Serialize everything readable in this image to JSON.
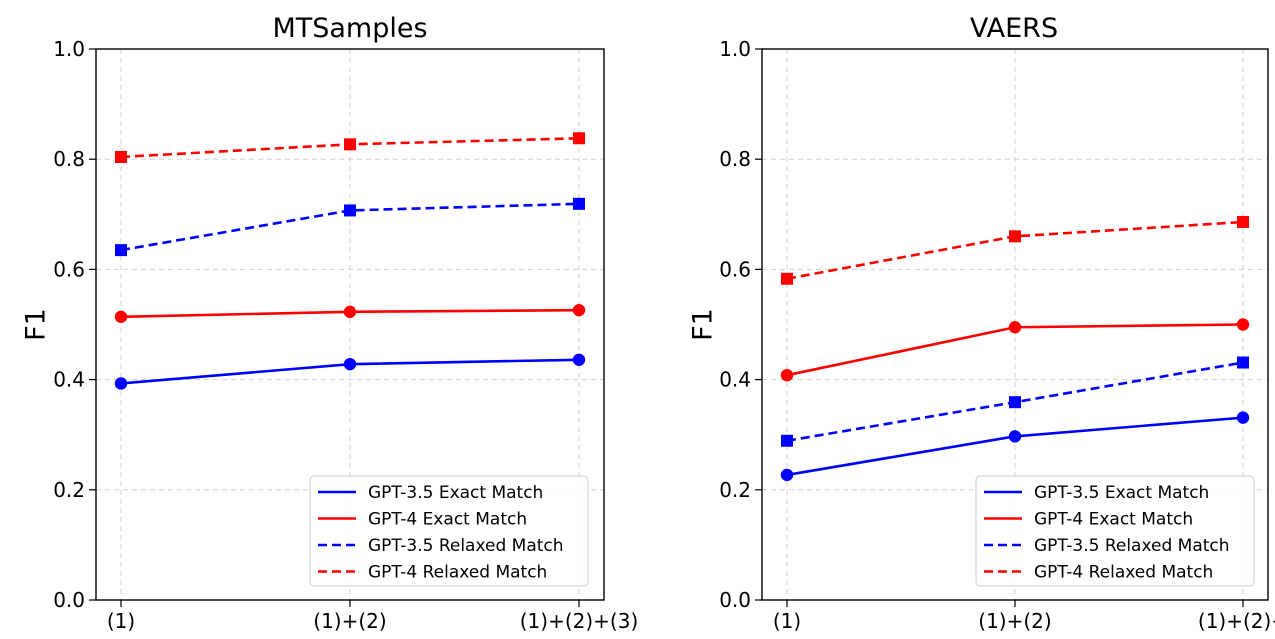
{
  "chart_data": [
    {
      "type": "line",
      "title": "MTSamples",
      "xlabel": "",
      "ylabel": "F1",
      "categories": [
        "(1)",
        "(1)+(2)",
        "(1)+(2)+(3)"
      ],
      "ylim": [
        0.0,
        1.0
      ],
      "yticks": [
        "0.0",
        "0.2",
        "0.4",
        "0.6",
        "0.8",
        "1.0"
      ],
      "grid": true,
      "legend_position": "bottom-right",
      "series": [
        {
          "name": "GPT-3.5 Exact Match",
          "color": "#0000ff",
          "style": "solid",
          "marker": "circle",
          "values": [
            0.393,
            0.428,
            0.436
          ]
        },
        {
          "name": "GPT-4 Exact Match",
          "color": "#ff0000",
          "style": "solid",
          "marker": "circle",
          "values": [
            0.514,
            0.523,
            0.526
          ]
        },
        {
          "name": "GPT-3.5 Relaxed Match",
          "color": "#0000ff",
          "style": "dashed",
          "marker": "square",
          "values": [
            0.635,
            0.707,
            0.719
          ]
        },
        {
          "name": "GPT-4 Relaxed Match",
          "color": "#ff0000",
          "style": "dashed",
          "marker": "square",
          "values": [
            0.804,
            0.827,
            0.838
          ]
        }
      ]
    },
    {
      "type": "line",
      "title": "VAERS",
      "xlabel": "",
      "ylabel": "F1",
      "categories": [
        "(1)",
        "(1)+(2)",
        "(1)+(2)+"
      ],
      "ylim": [
        0.0,
        1.0
      ],
      "yticks": [
        "0.0",
        "0.2",
        "0.4",
        "0.6",
        "0.8",
        "1.0"
      ],
      "grid": true,
      "legend_position": "bottom-right",
      "series": [
        {
          "name": "GPT-3.5 Exact Match",
          "color": "#0000ff",
          "style": "solid",
          "marker": "circle",
          "values": [
            0.227,
            0.297,
            0.331
          ]
        },
        {
          "name": "GPT-4 Exact Match",
          "color": "#ff0000",
          "style": "solid",
          "marker": "circle",
          "values": [
            0.408,
            0.495,
            0.5
          ]
        },
        {
          "name": "GPT-3.5 Relaxed Match",
          "color": "#0000ff",
          "style": "dashed",
          "marker": "square",
          "values": [
            0.289,
            0.359,
            0.431
          ]
        },
        {
          "name": "GPT-4 Relaxed Match",
          "color": "#ff0000",
          "style": "dashed",
          "marker": "square",
          "values": [
            0.583,
            0.66,
            0.686
          ]
        }
      ]
    }
  ]
}
